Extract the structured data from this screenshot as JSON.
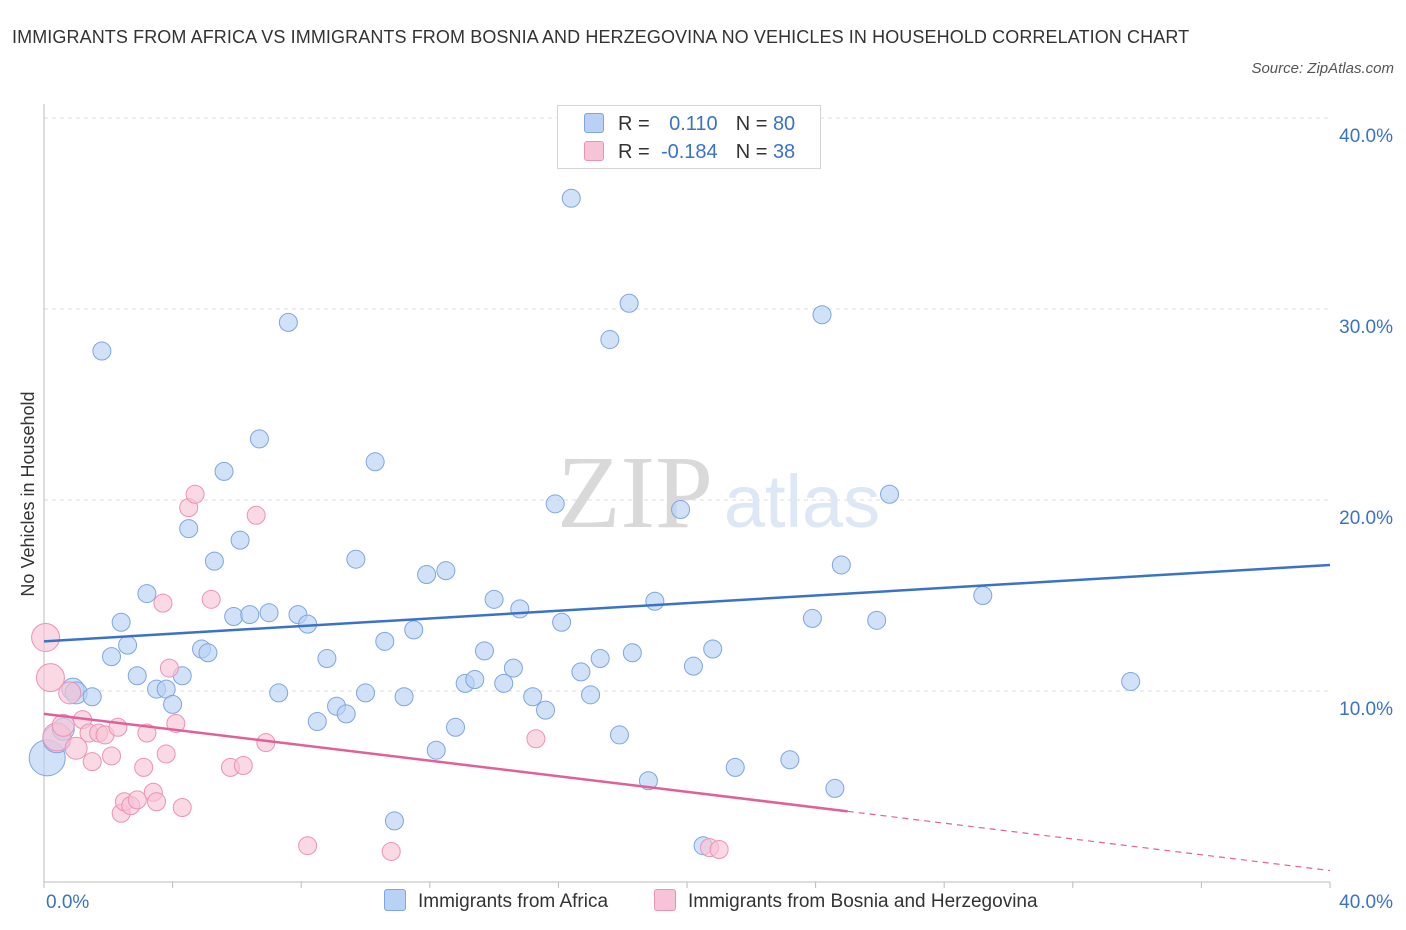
{
  "title": "IMMIGRANTS FROM AFRICA VS IMMIGRANTS FROM BOSNIA AND HERZEGOVINA NO VEHICLES IN HOUSEHOLD CORRELATION CHART",
  "source": "Source: ZipAtlas.com",
  "watermark": {
    "zip": "ZIP",
    "atlas": "atlas"
  },
  "colors": {
    "africa": "#3a72c8",
    "africa_fill": "#b9d1f5",
    "bosnia": "#e0609a",
    "bosnia_fill": "#f7c3d6",
    "axis_text": "#3a72c8",
    "grid": "#dddddd"
  },
  "stats": [
    {
      "r_label": "R =",
      "r_value": "0.110",
      "n_label": "N =",
      "n_value": "80"
    },
    {
      "r_label": "R =",
      "r_value": "-0.184",
      "n_label": "N =",
      "n_value": "38"
    }
  ],
  "chart_data": {
    "type": "scatter",
    "title": "IMMIGRANTS FROM AFRICA VS IMMIGRANTS FROM BOSNIA AND HERZEGOVINA NO VEHICLES IN HOUSEHOLD CORRELATION CHART",
    "xlabel": "",
    "ylabel": "No Vehicles in Household",
    "xlim": [
      0,
      40
    ],
    "ylim": [
      0,
      40
    ],
    "x_tick_labels": [
      "0.0%",
      "40.0%"
    ],
    "y_ticks": [
      10,
      20,
      30,
      40
    ],
    "y_tick_labels": [
      "10.0%",
      "20.0%",
      "30.0%",
      "40.0%"
    ],
    "grid": true,
    "legend": "bottom",
    "series": [
      {
        "name": "Immigrants from Africa",
        "points": [
          [
            0.1,
            6.5
          ],
          [
            0.4,
            7.5
          ],
          [
            0.6,
            8.0
          ],
          [
            0.9,
            10.1
          ],
          [
            1.0,
            9.9
          ],
          [
            1.5,
            9.7
          ],
          [
            1.8,
            27.8
          ],
          [
            2.1,
            11.8
          ],
          [
            2.4,
            13.6
          ],
          [
            2.6,
            12.4
          ],
          [
            2.9,
            10.8
          ],
          [
            3.2,
            15.1
          ],
          [
            3.5,
            10.1
          ],
          [
            3.8,
            10.1
          ],
          [
            4.0,
            9.3
          ],
          [
            4.3,
            10.8
          ],
          [
            4.5,
            18.5
          ],
          [
            4.9,
            12.2
          ],
          [
            5.1,
            12.0
          ],
          [
            5.3,
            16.8
          ],
          [
            5.6,
            21.5
          ],
          [
            5.9,
            13.9
          ],
          [
            6.1,
            17.9
          ],
          [
            6.4,
            14.0
          ],
          [
            6.7,
            23.2
          ],
          [
            7.0,
            14.1
          ],
          [
            7.3,
            9.9
          ],
          [
            7.6,
            29.3
          ],
          [
            7.9,
            14.0
          ],
          [
            8.2,
            13.5
          ],
          [
            8.5,
            8.4
          ],
          [
            8.8,
            11.7
          ],
          [
            9.1,
            9.2
          ],
          [
            9.4,
            8.8
          ],
          [
            9.7,
            16.9
          ],
          [
            10.0,
            9.9
          ],
          [
            10.3,
            22.0
          ],
          [
            10.6,
            12.6
          ],
          [
            10.9,
            3.2
          ],
          [
            11.2,
            9.7
          ],
          [
            11.5,
            13.2
          ],
          [
            11.9,
            16.1
          ],
          [
            12.2,
            6.9
          ],
          [
            12.5,
            16.3
          ],
          [
            12.8,
            8.1
          ],
          [
            13.1,
            10.4
          ],
          [
            13.4,
            10.6
          ],
          [
            13.7,
            12.1
          ],
          [
            14.0,
            14.8
          ],
          [
            14.3,
            10.4
          ],
          [
            14.6,
            11.2
          ],
          [
            14.8,
            14.3
          ],
          [
            15.2,
            9.7
          ],
          [
            15.6,
            9.0
          ],
          [
            15.9,
            19.8
          ],
          [
            16.1,
            13.6
          ],
          [
            16.4,
            35.8
          ],
          [
            16.7,
            11.0
          ],
          [
            17.0,
            9.8
          ],
          [
            17.3,
            11.7
          ],
          [
            17.6,
            28.4
          ],
          [
            17.9,
            7.7
          ],
          [
            18.2,
            30.3
          ],
          [
            18.3,
            12.0
          ],
          [
            18.8,
            5.3
          ],
          [
            19.0,
            14.7
          ],
          [
            19.8,
            19.5
          ],
          [
            20.2,
            11.3
          ],
          [
            20.5,
            1.9
          ],
          [
            21.5,
            6.0
          ],
          [
            23.2,
            6.4
          ],
          [
            23.9,
            13.8
          ],
          [
            24.2,
            29.7
          ],
          [
            24.6,
            4.9
          ],
          [
            24.8,
            16.6
          ],
          [
            25.9,
            13.7
          ],
          [
            26.3,
            20.3
          ],
          [
            29.2,
            15.0
          ],
          [
            33.8,
            10.5
          ],
          [
            20.8,
            12.2
          ]
        ],
        "trend": {
          "x": [
            0,
            40
          ],
          "y": [
            12.6,
            16.6
          ]
        }
      },
      {
        "name": "Immigrants from Bosnia and Herzegovina",
        "points": [
          [
            0.05,
            12.8
          ],
          [
            0.2,
            10.7
          ],
          [
            0.4,
            7.6
          ],
          [
            0.6,
            8.2
          ],
          [
            0.8,
            9.9
          ],
          [
            1.0,
            7.0
          ],
          [
            1.2,
            8.5
          ],
          [
            1.4,
            7.8
          ],
          [
            1.5,
            6.3
          ],
          [
            1.7,
            7.8
          ],
          [
            1.9,
            7.7
          ],
          [
            2.1,
            6.6
          ],
          [
            2.3,
            8.1
          ],
          [
            2.4,
            3.6
          ],
          [
            2.5,
            4.2
          ],
          [
            2.7,
            4.0
          ],
          [
            2.9,
            4.3
          ],
          [
            3.1,
            6.0
          ],
          [
            3.2,
            7.8
          ],
          [
            3.4,
            4.7
          ],
          [
            3.5,
            4.2
          ],
          [
            3.7,
            14.6
          ],
          [
            3.8,
            6.7
          ],
          [
            3.9,
            11.2
          ],
          [
            4.1,
            8.3
          ],
          [
            4.3,
            3.9
          ],
          [
            4.5,
            19.6
          ],
          [
            4.7,
            20.3
          ],
          [
            5.2,
            14.8
          ],
          [
            5.8,
            6.0
          ],
          [
            6.2,
            6.1
          ],
          [
            6.6,
            19.2
          ],
          [
            6.9,
            7.3
          ],
          [
            8.2,
            1.9
          ],
          [
            10.8,
            1.6
          ],
          [
            15.3,
            7.5
          ],
          [
            20.7,
            1.8
          ],
          [
            21.0,
            1.7
          ]
        ],
        "trend": {
          "x": [
            0,
            25
          ],
          "y": [
            8.8,
            3.7
          ]
        },
        "trend_dashed": {
          "x": [
            25,
            40
          ],
          "y": [
            3.7,
            0.6
          ]
        }
      }
    ]
  },
  "legend_bottom": [
    {
      "label": "Immigrants from Africa"
    },
    {
      "label": "Immigrants from Bosnia and Herzegovina"
    }
  ]
}
